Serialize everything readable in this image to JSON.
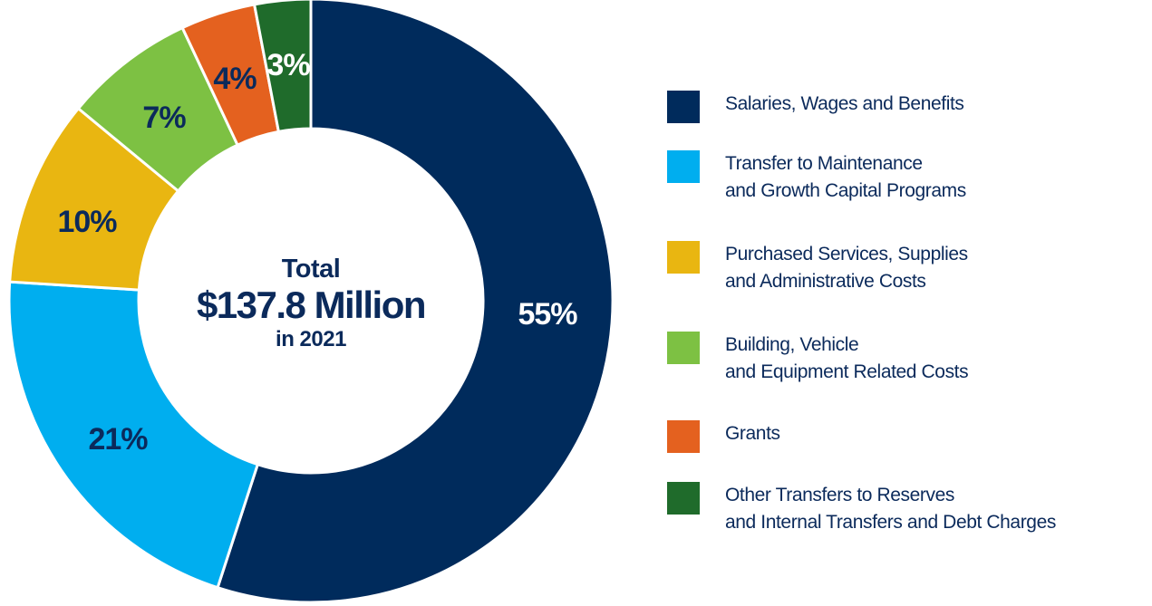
{
  "center": {
    "line1": "Total",
    "line2": "$137.8 Million",
    "line3": "in 2021"
  },
  "chart_data": {
    "type": "pie",
    "variant": "donut",
    "title": "",
    "legend_position": "right",
    "categories": [
      "Salaries, Wages and Benefits",
      "Transfer to Maintenance and Growth Capital Programs",
      "Purchased Services, Supplies and Administrative Costs",
      "Building, Vehicle and Equipment Related Costs",
      "Grants",
      "Other Transfers to Reserves and Internal Transfers and Debt Charges"
    ],
    "values": [
      55,
      21,
      10,
      7,
      4,
      3
    ],
    "data_labels": [
      "55%",
      "21%",
      "10%",
      "7%",
      "4%",
      "3%"
    ],
    "colors": [
      "#002b5c",
      "#00aeef",
      "#e9b611",
      "#7dc143",
      "#e4611f",
      "#1f6b2b"
    ],
    "label_colors": [
      "#ffffff",
      "#0b2a5b",
      "#0b2a5b",
      "#0b2a5b",
      "#0b2a5b",
      "#ffffff"
    ]
  },
  "legend": [
    {
      "lines": [
        "Salaries, Wages and Benefits"
      ],
      "color": "#002b5c"
    },
    {
      "lines": [
        "Transfer to Maintenance",
        "and Growth Capital Programs"
      ],
      "color": "#00aeef"
    },
    {
      "lines": [
        "Purchased Services, Supplies",
        "and Administrative Costs"
      ],
      "color": "#e9b611"
    },
    {
      "lines": [
        "Building, Vehicle",
        "and Equipment Related Costs"
      ],
      "color": "#7dc143"
    },
    {
      "lines": [
        "Grants"
      ],
      "color": "#e4611f"
    },
    {
      "lines": [
        "Other Transfers to Reserves",
        "and Internal Transfers and Debt Charges"
      ],
      "color": "#1f6b2b"
    }
  ]
}
